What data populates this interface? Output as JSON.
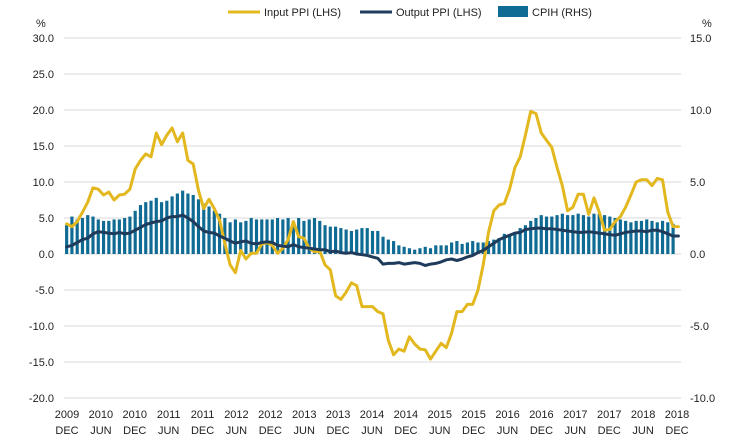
{
  "chart_data": {
    "type": "bar+line",
    "title": "",
    "left_axis": {
      "unit_label": "%",
      "ticks": [
        "30.0",
        "25.0",
        "20.0",
        "15.0",
        "10.0",
        "5.0",
        "0.0",
        "-5.0",
        "-10.0",
        "-15.0",
        "-20.0"
      ],
      "range": [
        -20,
        30
      ]
    },
    "right_axis": {
      "unit_label": "%",
      "ticks": [
        "15.0",
        "10.0",
        "5.0",
        "0.0",
        "-5.0",
        "-10.0"
      ],
      "range": [
        -10,
        15
      ]
    },
    "x_labels": [
      {
        "year": "2009",
        "month": "DEC"
      },
      {
        "year": "2010",
        "month": "JUN"
      },
      {
        "year": "2010",
        "month": "DEC"
      },
      {
        "year": "2011",
        "month": "JUN"
      },
      {
        "year": "2011",
        "month": "DEC"
      },
      {
        "year": "2012",
        "month": "JUN"
      },
      {
        "year": "2012",
        "month": "DEC"
      },
      {
        "year": "2013",
        "month": "JUN"
      },
      {
        "year": "2013",
        "month": "DEC"
      },
      {
        "year": "2014",
        "month": "JUN"
      },
      {
        "year": "2014",
        "month": "DEC"
      },
      {
        "year": "2015",
        "month": "JUN"
      },
      {
        "year": "2015",
        "month": "DEC"
      },
      {
        "year": "2016",
        "month": "JUN"
      },
      {
        "year": "2016",
        "month": "DEC"
      },
      {
        "year": "2017",
        "month": "JUN"
      },
      {
        "year": "2017",
        "month": "DEC"
      },
      {
        "year": "2018",
        "month": "JUN"
      },
      {
        "year": "2018",
        "month": "DEC"
      }
    ],
    "legend": [
      {
        "name": "Input PPI (LHS)",
        "color": "#e3b81f",
        "kind": "line"
      },
      {
        "name": "Output PPI (LHS)",
        "color": "#1f3b5c",
        "kind": "line"
      },
      {
        "name": "CPIH (RHS)",
        "color": "#0f6b94",
        "kind": "bar"
      }
    ],
    "series": [
      {
        "name": "Input PPI (LHS)",
        "axis": "left",
        "anchors": [
          [
            0,
            4.2
          ],
          [
            1,
            3.8
          ],
          [
            2,
            4.5
          ],
          [
            3,
            5.8
          ],
          [
            4,
            7.2
          ],
          [
            5,
            9.2
          ],
          [
            6,
            9.0
          ],
          [
            7,
            8.2
          ],
          [
            8,
            8.6
          ],
          [
            9,
            7.5
          ],
          [
            10,
            8.2
          ],
          [
            11,
            8.3
          ],
          [
            12,
            9.0
          ],
          [
            13,
            11.8
          ],
          [
            14,
            13.0
          ],
          [
            15,
            13.9
          ],
          [
            16,
            13.5
          ],
          [
            17,
            16.8
          ],
          [
            18,
            15.2
          ],
          [
            19,
            16.5
          ],
          [
            20,
            17.5
          ],
          [
            21,
            15.6
          ],
          [
            22,
            16.8
          ],
          [
            23,
            13.0
          ],
          [
            24,
            12.5
          ],
          [
            25,
            8.8
          ],
          [
            26,
            6.3
          ],
          [
            27,
            7.6
          ],
          [
            28,
            6.3
          ],
          [
            29,
            4.7
          ],
          [
            30,
            1.5
          ],
          [
            31,
            -1.5
          ],
          [
            32,
            -2.6
          ],
          [
            33,
            0.5
          ],
          [
            34,
            -0.7
          ],
          [
            35,
            0.1
          ],
          [
            36,
            0.1
          ],
          [
            37,
            1.4
          ],
          [
            38,
            1.6
          ],
          [
            39,
            1.2
          ],
          [
            40,
            0.1
          ],
          [
            41,
            0.8
          ],
          [
            42,
            2.0
          ],
          [
            43,
            4.5
          ],
          [
            44,
            2.4
          ],
          [
            45,
            2.2
          ],
          [
            46,
            0.8
          ],
          [
            47,
            0.3
          ],
          [
            48,
            0.4
          ],
          [
            49,
            -1.5
          ],
          [
            50,
            -2.2
          ],
          [
            51,
            -5.8
          ],
          [
            52,
            -6.3
          ],
          [
            53,
            -5.3
          ],
          [
            54,
            -4.0
          ],
          [
            55,
            -4.4
          ],
          [
            56,
            -7.3
          ],
          [
            57,
            -7.3
          ],
          [
            58,
            -7.3
          ],
          [
            59,
            -8.0
          ],
          [
            60,
            -8.3
          ],
          [
            61,
            -12.0
          ],
          [
            62,
            -14.0
          ],
          [
            63,
            -13.2
          ],
          [
            64,
            -13.5
          ],
          [
            65,
            -11.5
          ],
          [
            66,
            -12.5
          ],
          [
            67,
            -13.2
          ],
          [
            68,
            -13.3
          ],
          [
            69,
            -14.6
          ],
          [
            70,
            -13.5
          ],
          [
            71,
            -12.4
          ],
          [
            72,
            -13.0
          ],
          [
            73,
            -11.0
          ],
          [
            74,
            -8.0
          ],
          [
            75,
            -8.0
          ],
          [
            76,
            -7.0
          ],
          [
            77,
            -7.0
          ],
          [
            78,
            -5.0
          ],
          [
            79,
            -1.5
          ],
          [
            80,
            3.0
          ],
          [
            81,
            6.0
          ],
          [
            82,
            6.8
          ],
          [
            83,
            7.0
          ],
          [
            84,
            9.0
          ],
          [
            85,
            12.0
          ],
          [
            86,
            13.5
          ],
          [
            87,
            16.5
          ],
          [
            88,
            19.8
          ],
          [
            89,
            19.5
          ],
          [
            90,
            16.8
          ],
          [
            91,
            15.8
          ],
          [
            92,
            14.8
          ],
          [
            93,
            12.0
          ],
          [
            94,
            9.5
          ],
          [
            95,
            6.0
          ],
          [
            96,
            6.5
          ],
          [
            97,
            8.3
          ],
          [
            98,
            8.3
          ],
          [
            99,
            5.5
          ],
          [
            100,
            7.8
          ],
          [
            101,
            5.8
          ],
          [
            102,
            3.3
          ],
          [
            103,
            3.4
          ],
          [
            104,
            4.5
          ],
          [
            105,
            5.2
          ],
          [
            106,
            6.5
          ],
          [
            107,
            8.2
          ],
          [
            108,
            10.0
          ],
          [
            109,
            10.3
          ],
          [
            110,
            10.3
          ],
          [
            111,
            9.5
          ],
          [
            112,
            10.5
          ],
          [
            113,
            10.3
          ],
          [
            114,
            5.8
          ],
          [
            115,
            3.8
          ]
        ]
      },
      {
        "name": "Output PPI (LHS)",
        "axis": "left",
        "anchors": [
          [
            0,
            1.0
          ],
          [
            1,
            1.2
          ],
          [
            2,
            1.6
          ],
          [
            3,
            2.0
          ],
          [
            4,
            2.2
          ],
          [
            5,
            2.8
          ],
          [
            6,
            3.1
          ],
          [
            7,
            3.0
          ],
          [
            8,
            2.9
          ],
          [
            9,
            2.8
          ],
          [
            10,
            3.0
          ],
          [
            11,
            2.8
          ],
          [
            12,
            2.9
          ],
          [
            13,
            3.3
          ],
          [
            14,
            3.7
          ],
          [
            15,
            4.1
          ],
          [
            16,
            4.3
          ],
          [
            17,
            4.5
          ],
          [
            18,
            4.6
          ],
          [
            19,
            5.0
          ],
          [
            20,
            5.2
          ],
          [
            21,
            5.2
          ],
          [
            22,
            5.4
          ],
          [
            23,
            5.0
          ],
          [
            24,
            4.5
          ],
          [
            25,
            3.8
          ],
          [
            26,
            3.2
          ],
          [
            27,
            3.0
          ],
          [
            28,
            2.9
          ],
          [
            29,
            2.5
          ],
          [
            30,
            2.2
          ],
          [
            31,
            1.8
          ],
          [
            32,
            1.5
          ],
          [
            33,
            1.7
          ],
          [
            34,
            1.8
          ],
          [
            35,
            1.5
          ],
          [
            36,
            1.4
          ],
          [
            37,
            1.6
          ],
          [
            38,
            1.7
          ],
          [
            39,
            1.6
          ],
          [
            40,
            1.2
          ],
          [
            41,
            1.1
          ],
          [
            42,
            1.0
          ],
          [
            43,
            1.3
          ],
          [
            44,
            1.0
          ],
          [
            45,
            0.9
          ],
          [
            46,
            0.8
          ],
          [
            47,
            0.7
          ],
          [
            48,
            0.6
          ],
          [
            49,
            0.6
          ],
          [
            50,
            0.3
          ],
          [
            51,
            0.4
          ],
          [
            52,
            0.2
          ],
          [
            53,
            0.1
          ],
          [
            54,
            0.2
          ],
          [
            55,
            0.0
          ],
          [
            56,
            -0.1
          ],
          [
            57,
            -0.2
          ],
          [
            58,
            -0.4
          ],
          [
            59,
            -0.6
          ],
          [
            60,
            -1.4
          ],
          [
            61,
            -1.3
          ],
          [
            62,
            -1.3
          ],
          [
            63,
            -1.2
          ],
          [
            64,
            -1.4
          ],
          [
            65,
            -1.3
          ],
          [
            66,
            -1.2
          ],
          [
            67,
            -1.3
          ],
          [
            68,
            -1.6
          ],
          [
            69,
            -1.4
          ],
          [
            70,
            -1.3
          ],
          [
            71,
            -1.1
          ],
          [
            72,
            -0.8
          ],
          [
            73,
            -0.7
          ],
          [
            74,
            -0.9
          ],
          [
            75,
            -0.7
          ],
          [
            76,
            -0.4
          ],
          [
            77,
            -0.2
          ],
          [
            78,
            0.2
          ],
          [
            79,
            0.5
          ],
          [
            80,
            1.0
          ],
          [
            81,
            1.5
          ],
          [
            82,
            2.0
          ],
          [
            83,
            2.3
          ],
          [
            84,
            2.6
          ],
          [
            85,
            2.9
          ],
          [
            86,
            3.0
          ],
          [
            87,
            3.4
          ],
          [
            88,
            3.5
          ],
          [
            89,
            3.6
          ],
          [
            90,
            3.6
          ],
          [
            91,
            3.5
          ],
          [
            92,
            3.5
          ],
          [
            93,
            3.4
          ],
          [
            94,
            3.3
          ],
          [
            95,
            3.2
          ],
          [
            96,
            3.1
          ],
          [
            97,
            3.0
          ],
          [
            98,
            3.0
          ],
          [
            99,
            3.1
          ],
          [
            100,
            3.0
          ],
          [
            101,
            2.9
          ],
          [
            102,
            2.8
          ],
          [
            103,
            2.7
          ],
          [
            104,
            2.6
          ],
          [
            105,
            2.8
          ],
          [
            106,
            3.0
          ],
          [
            107,
            3.1
          ],
          [
            108,
            3.2
          ],
          [
            109,
            3.2
          ],
          [
            110,
            3.1
          ],
          [
            111,
            3.3
          ],
          [
            112,
            3.3
          ],
          [
            113,
            3.1
          ],
          [
            114,
            2.8
          ],
          [
            115,
            2.5
          ]
        ]
      },
      {
        "name": "CPIH (RHS)",
        "axis": "right",
        "values": [
          2.0,
          2.6,
          2.4,
          2.5,
          2.7,
          2.6,
          2.4,
          2.3,
          2.3,
          2.4,
          2.4,
          2.5,
          2.6,
          3.0,
          3.4,
          3.6,
          3.7,
          3.9,
          3.6,
          3.7,
          4.0,
          4.2,
          4.4,
          4.2,
          4.1,
          3.8,
          3.5,
          3.3,
          3.0,
          2.8,
          2.5,
          2.2,
          2.4,
          2.2,
          2.3,
          2.5,
          2.4,
          2.4,
          2.4,
          2.4,
          2.5,
          2.4,
          2.5,
          2.3,
          2.5,
          2.3,
          2.4,
          2.5,
          2.3,
          2.0,
          1.9,
          1.9,
          1.8,
          1.7,
          1.6,
          1.7,
          1.8,
          1.8,
          1.6,
          1.6,
          1.2,
          1.0,
          0.9,
          0.6,
          0.5,
          0.4,
          0.3,
          0.4,
          0.5,
          0.4,
          0.6,
          0.6,
          0.6,
          0.8,
          0.9,
          0.7,
          0.8,
          0.9,
          0.8,
          0.8,
          0.9,
          1.0,
          1.1,
          1.4,
          1.3,
          1.5,
          1.8,
          2.0,
          2.3,
          2.5,
          2.7,
          2.6,
          2.6,
          2.7,
          2.8,
          2.7,
          2.7,
          2.8,
          2.7,
          2.6,
          2.8,
          2.8,
          2.7,
          2.6,
          2.5,
          2.4,
          2.3,
          2.2,
          2.3,
          2.3,
          2.4,
          2.3,
          2.2,
          2.3,
          2.2,
          2.1
        ]
      }
    ]
  }
}
